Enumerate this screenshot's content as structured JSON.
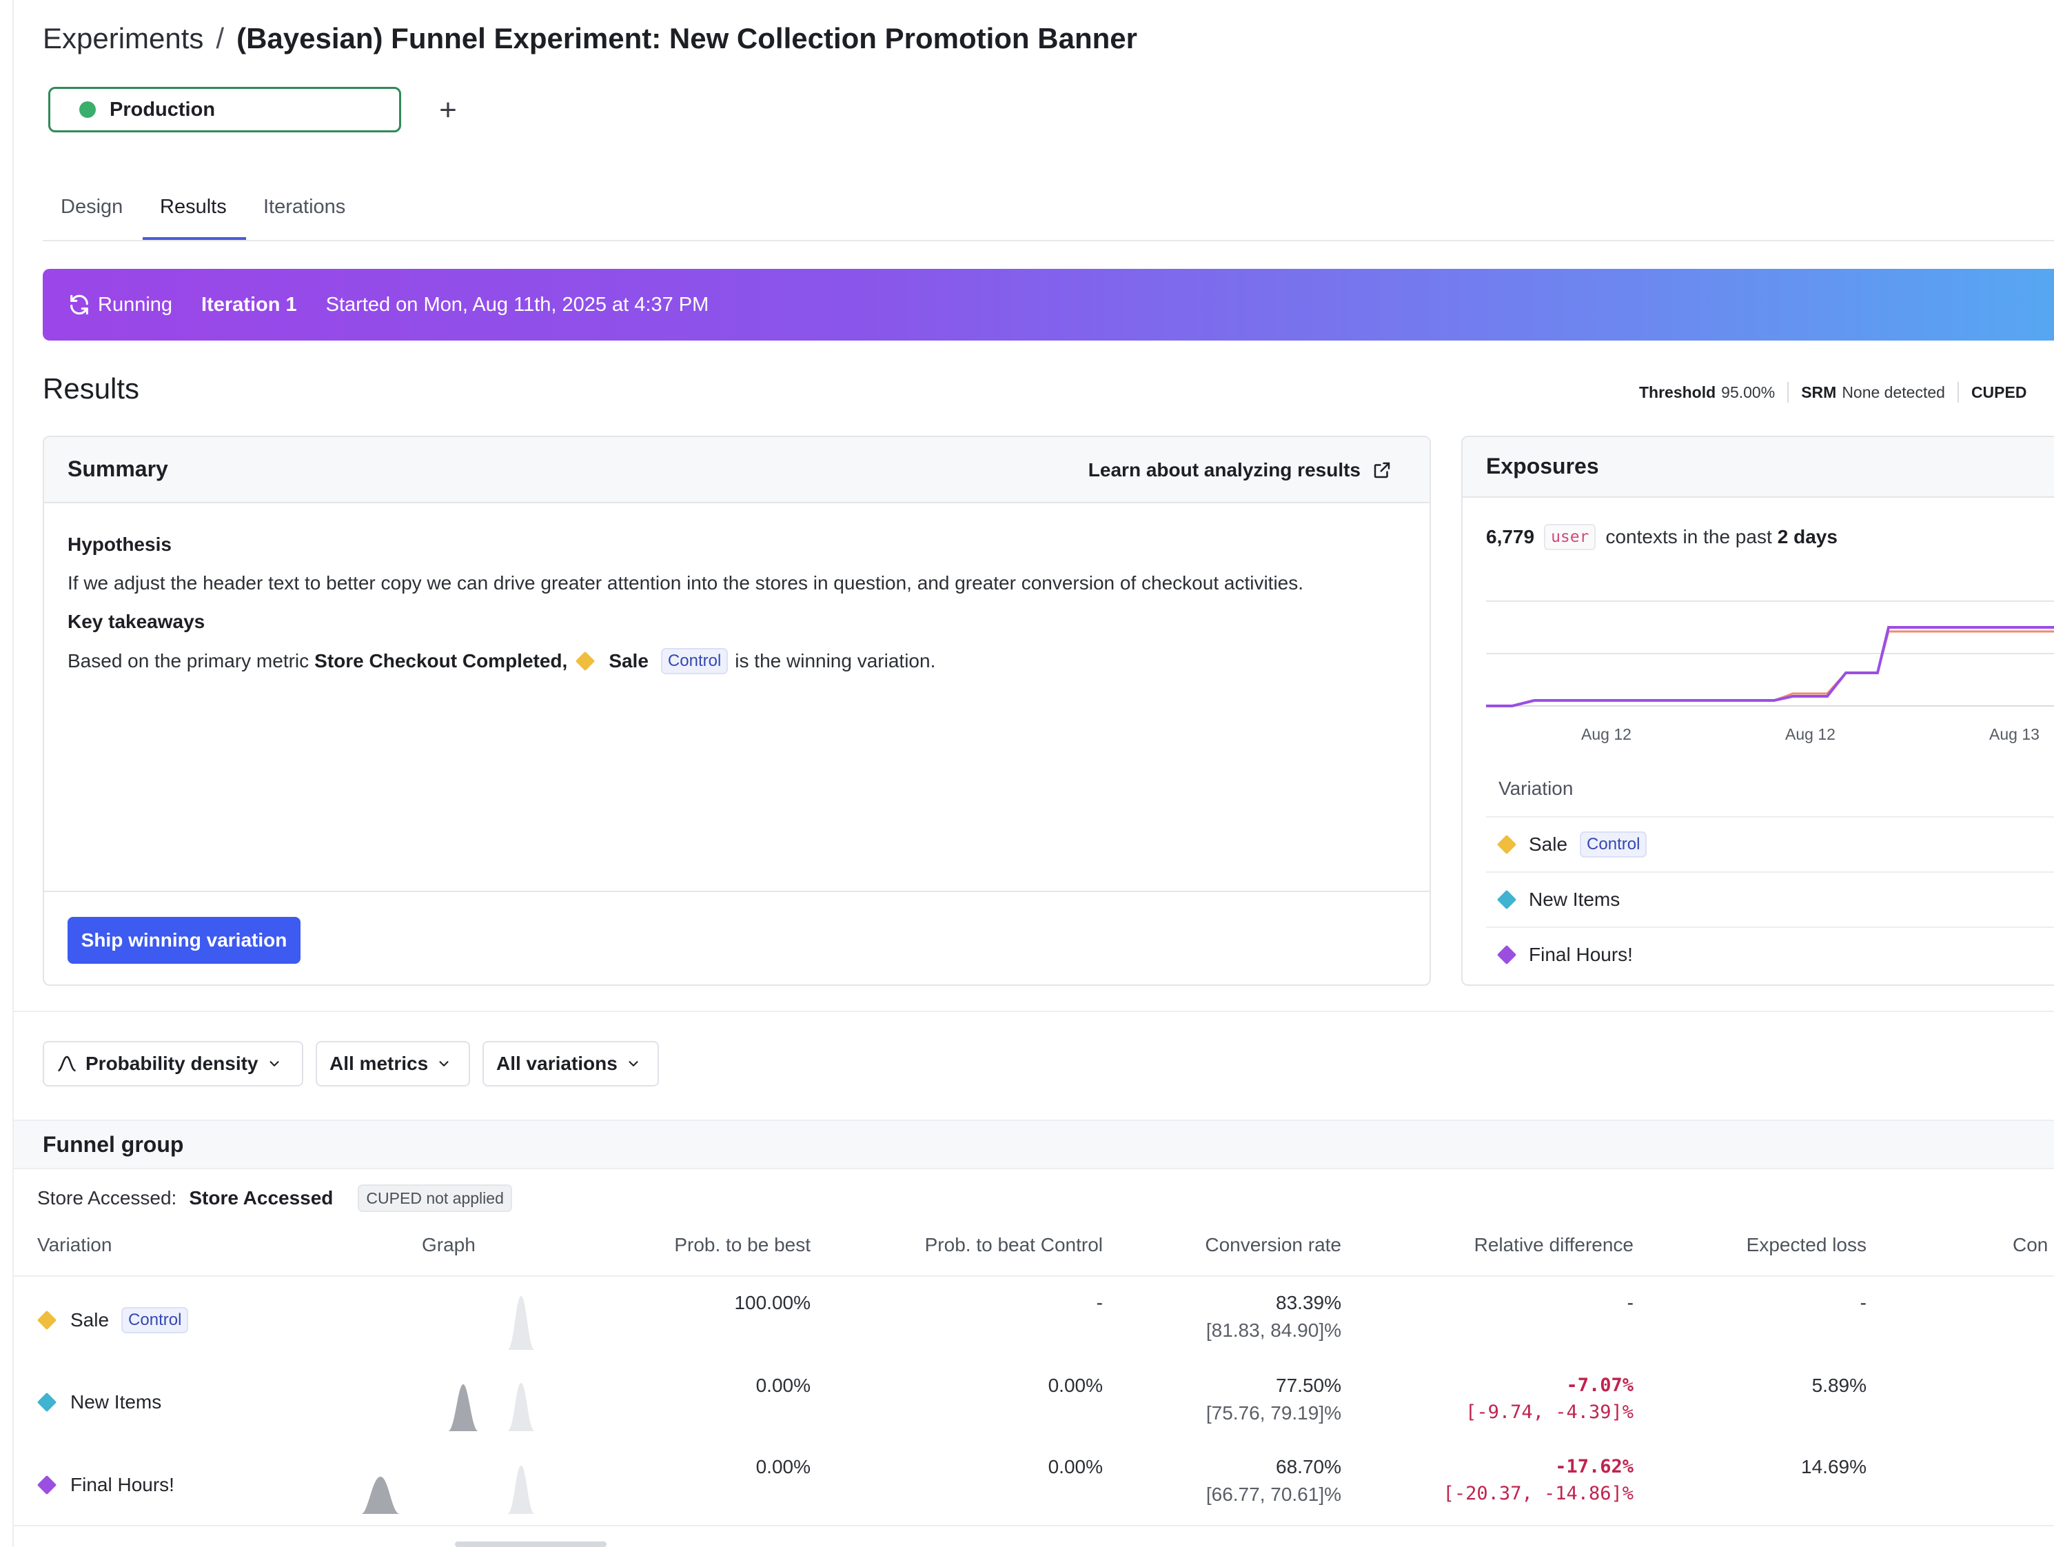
{
  "breadcrumb": {
    "parent": "Experiments",
    "separator": "/",
    "title": "(Bayesian) Funnel Experiment: New Collection Promotion Banner"
  },
  "environment": {
    "label": "Production",
    "status_color": "#3aae6c",
    "add_symbol": "+"
  },
  "tabs": [
    {
      "label": "Design",
      "active": false
    },
    {
      "label": "Results",
      "active": true
    },
    {
      "label": "Iterations",
      "active": false
    }
  ],
  "banner": {
    "status": "Running",
    "iteration": "Iteration 1",
    "started": "Started on Mon, Aug 11th, 2025 at 4:37 PM",
    "icon": "refresh-icon"
  },
  "results": {
    "heading": "Results",
    "meta": [
      {
        "label": "Threshold",
        "value": "95.00%"
      },
      {
        "label": "SRM",
        "value": "None detected"
      },
      {
        "label": "CUPED",
        "value": ""
      }
    ]
  },
  "summary": {
    "title": "Summary",
    "learn_link": "Learn about analyzing results",
    "hypothesis_heading": "Hypothesis",
    "hypothesis_text": "If we adjust the header text to better copy we can drive greater attention into the stores in question, and greater conversion of checkout activities.",
    "takeaways_heading": "Key takeaways",
    "takeaway_prefix": "Based on the primary metric",
    "takeaway_metric": "Store Checkout Completed,",
    "takeaway_variation": "Sale",
    "takeaway_badge": "Control",
    "takeaway_suffix": "is the winning variation.",
    "ship_button": "Ship winning variation"
  },
  "exposures": {
    "title": "Exposures",
    "count": "6,779",
    "context_kind": "user",
    "text_middle": "contexts in the past",
    "period": "2 days",
    "x_ticks": [
      "Aug 12",
      "Aug 12",
      "Aug 13"
    ],
    "variation_heading": "Variation",
    "variations": [
      {
        "name": "Sale",
        "badge": "Control",
        "color": "#f0bd3c"
      },
      {
        "name": "New Items",
        "badge": "",
        "color": "#3fb3cf"
      },
      {
        "name": "Final Hours!",
        "badge": "",
        "color": "#9b4fe0"
      }
    ],
    "line_colors": {
      "primary": "#9a4fe3",
      "secondary": "#f08a6e"
    }
  },
  "filters": {
    "view": "Probability density",
    "metrics": "All metrics",
    "variations": "All variations"
  },
  "funnel": {
    "title": "Funnel group",
    "metric_label": "Store Accessed:",
    "metric_value": "Store Accessed",
    "cuped_badge": "CUPED not applied",
    "columns": [
      "Variation",
      "Graph",
      "Prob. to be best",
      "Prob. to beat Control",
      "Conversion rate",
      "Relative difference",
      "Expected loss",
      "Con"
    ],
    "rows": [
      {
        "name": "Sale",
        "badge": "Control",
        "color": "#f0bd3c",
        "prob_best": "100.00%",
        "prob_beat": "-",
        "conv_rate": "83.39%",
        "conv_interval": "[81.83, 84.90]%",
        "rel_diff": "-",
        "rel_interval": "",
        "exp_loss": "-",
        "negative": false
      },
      {
        "name": "New Items",
        "badge": "",
        "color": "#3fb3cf",
        "prob_best": "0.00%",
        "prob_beat": "0.00%",
        "conv_rate": "77.50%",
        "conv_interval": "[75.76, 79.19]%",
        "rel_diff": "-7.07%",
        "rel_interval": "[-9.74, -4.39]%",
        "exp_loss": "5.89%",
        "negative": true
      },
      {
        "name": "Final Hours!",
        "badge": "",
        "color": "#9b4fe0",
        "prob_best": "0.00%",
        "prob_beat": "0.00%",
        "conv_rate": "68.70%",
        "conv_interval": "[66.77, 70.61]%",
        "rel_diff": "-17.62%",
        "rel_interval": "[-20.37, -14.86]%",
        "exp_loss": "14.69%",
        "negative": true
      }
    ]
  }
}
